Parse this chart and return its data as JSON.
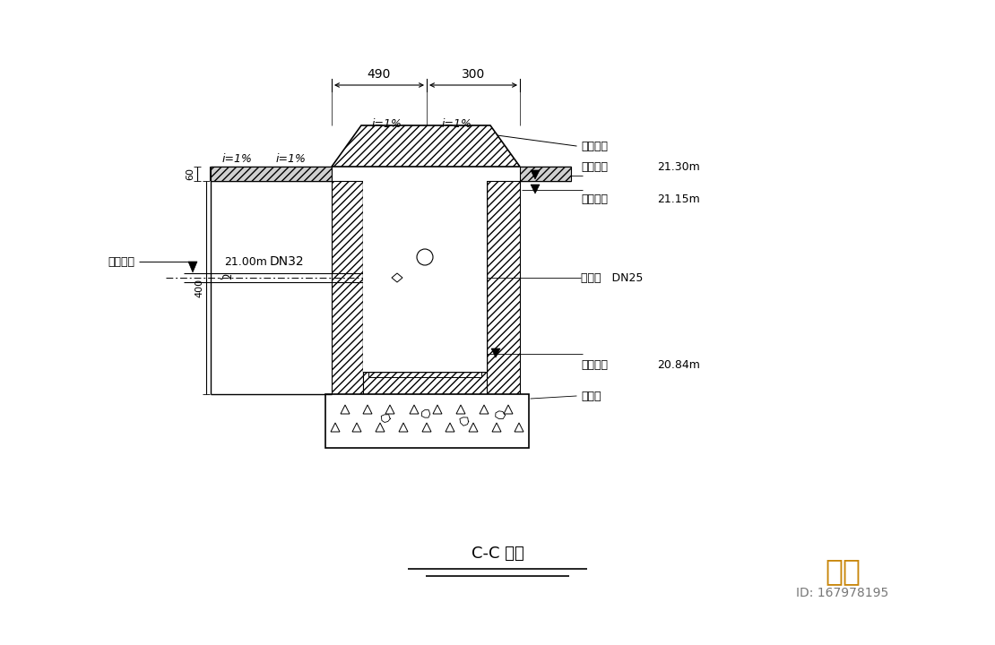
{
  "bg_color": "#ffffff",
  "line_color": "#000000",
  "title": "C-C 剪面",
  "watermark_text": "知末",
  "watermark_id": "ID: 167978195",
  "dim_490": "490",
  "dim_300": "300",
  "slope1": "i=1%",
  "slope2": "i=1%",
  "slope3": "i=1%",
  "slope4": "i=1%",
  "label_60": "60",
  "label_400": "400",
  "label_DN32": "DN32",
  "label_DN25": "浮球阀   DN25",
  "label_stone": "石板铺砼",
  "label_drain": "汇水沟",
  "abs_label1": "绝对标高",
  "abs_val1": "21.30m",
  "abs_label2": "绝对标高",
  "abs_val2": "21.15m",
  "abs_label3": "绝对标高",
  "abs_val3": "21.00m",
  "abs_label4": "绝对标高",
  "abs_val4": "20.84m"
}
